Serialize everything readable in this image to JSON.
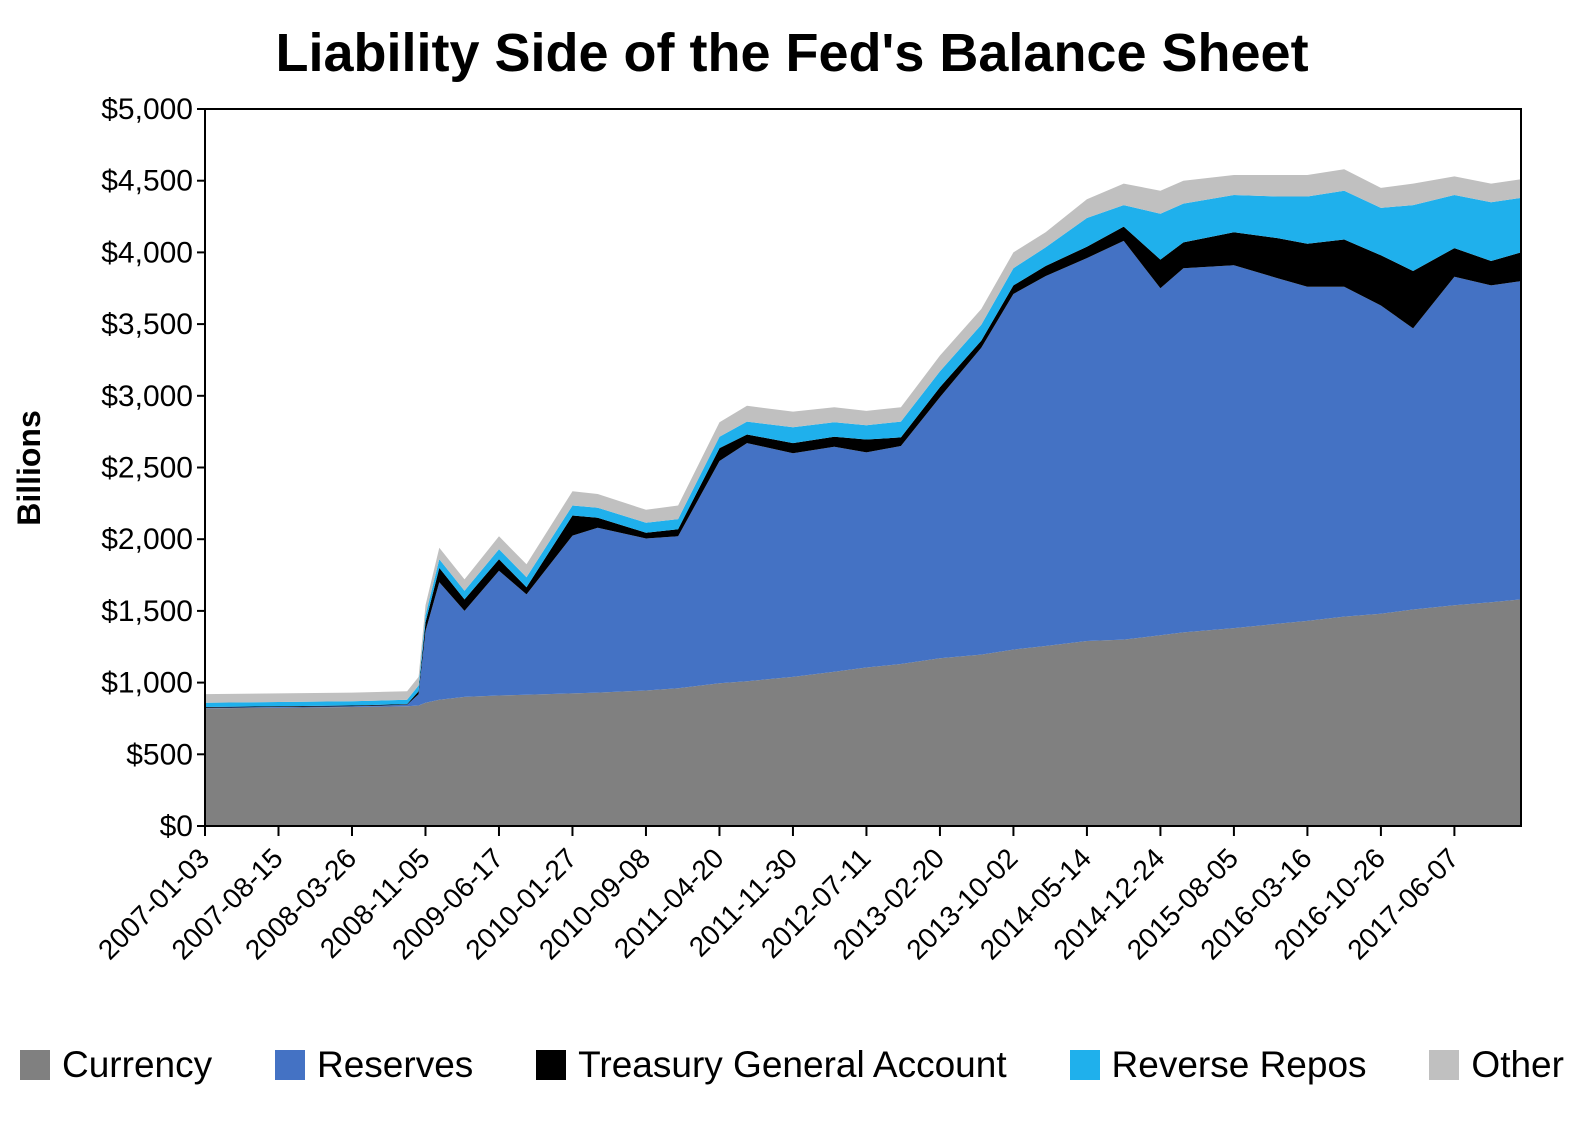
{
  "chart_data": {
    "type": "area",
    "stacked": true,
    "title": "Liability Side of the Fed's Balance Sheet",
    "ylabel": "Billions",
    "xlabel": "",
    "ylim": [
      0,
      5000
    ],
    "y_ticks": [
      "$0",
      "$500",
      "$1,000",
      "$1,500",
      "$2,000",
      "$2,500",
      "$3,000",
      "$3,500",
      "$4,000",
      "$4,500",
      "$5,000"
    ],
    "x_tick_labels": [
      "2007-01-03",
      "2007-08-15",
      "2008-03-26",
      "2008-11-05",
      "2009-06-17",
      "2010-01-27",
      "2010-09-08",
      "2011-04-20",
      "2011-11-30",
      "2012-07-11",
      "2013-02-20",
      "2013-10-02",
      "2014-05-14",
      "2014-12-24",
      "2015-08-05",
      "2016-03-16",
      "2016-10-26",
      "2017-06-07"
    ],
    "x_range": [
      "2007-01-03",
      "2017-12-27"
    ],
    "legend_position": "bottom",
    "grid": false,
    "x": [
      "2007-01-03",
      "2007-08-15",
      "2008-03-26",
      "2008-09-10",
      "2008-10-15",
      "2008-11-05",
      "2008-12-17",
      "2009-03-04",
      "2009-06-17",
      "2009-09-09",
      "2010-01-27",
      "2010-04-14",
      "2010-09-08",
      "2010-12-15",
      "2011-04-20",
      "2011-07-13",
      "2011-11-30",
      "2012-04-04",
      "2012-07-11",
      "2012-10-24",
      "2013-02-20",
      "2013-06-26",
      "2013-10-02",
      "2014-01-08",
      "2014-05-14",
      "2014-09-03",
      "2014-12-24",
      "2015-03-04",
      "2015-08-05",
      "2015-12-16",
      "2016-03-16",
      "2016-07-06",
      "2016-10-26",
      "2017-02-01",
      "2017-06-07",
      "2017-09-27",
      "2017-12-27"
    ],
    "series": [
      {
        "name": "Currency",
        "color": "#808080",
        "values": [
          820,
          825,
          830,
          835,
          840,
          860,
          880,
          900,
          910,
          915,
          925,
          930,
          945,
          960,
          995,
          1010,
          1040,
          1075,
          1105,
          1130,
          1170,
          1195,
          1230,
          1255,
          1290,
          1300,
          1330,
          1350,
          1380,
          1410,
          1430,
          1460,
          1480,
          1510,
          1540,
          1560,
          1580
        ]
      },
      {
        "name": "Reserves",
        "color": "#4472c4",
        "values": [
          5,
          5,
          5,
          10,
          80,
          500,
          820,
          600,
          870,
          700,
          1100,
          1150,
          1060,
          1060,
          1550,
          1660,
          1560,
          1570,
          1500,
          1520,
          1820,
          2140,
          2480,
          2580,
          2670,
          2780,
          2420,
          2540,
          2530,
          2410,
          2330,
          2300,
          2150,
          1960,
          2290,
          2210,
          2220
        ]
      },
      {
        "name": "Treasury General Account",
        "color": "#000000",
        "values": [
          5,
          5,
          5,
          5,
          20,
          60,
          100,
          80,
          80,
          50,
          140,
          70,
          40,
          50,
          90,
          60,
          70,
          70,
          90,
          60,
          70,
          50,
          60,
          70,
          80,
          100,
          200,
          180,
          230,
          280,
          300,
          330,
          350,
          400,
          200,
          170,
          200
        ]
      },
      {
        "name": "Reverse Repos",
        "color": "#1fb0ec",
        "values": [
          30,
          30,
          30,
          30,
          40,
          50,
          60,
          60,
          70,
          70,
          70,
          70,
          70,
          70,
          80,
          90,
          110,
          100,
          100,
          110,
          110,
          110,
          120,
          130,
          200,
          150,
          320,
          270,
          260,
          290,
          330,
          340,
          330,
          460,
          370,
          410,
          380
        ]
      },
      {
        "name": "Other",
        "color": "#c0c0c0",
        "values": [
          60,
          60,
          60,
          60,
          60,
          70,
          80,
          80,
          90,
          90,
          100,
          95,
          90,
          95,
          100,
          110,
          110,
          105,
          100,
          100,
          110,
          110,
          110,
          105,
          130,
          150,
          160,
          160,
          140,
          150,
          150,
          150,
          140,
          150,
          130,
          130,
          130
        ]
      }
    ]
  }
}
